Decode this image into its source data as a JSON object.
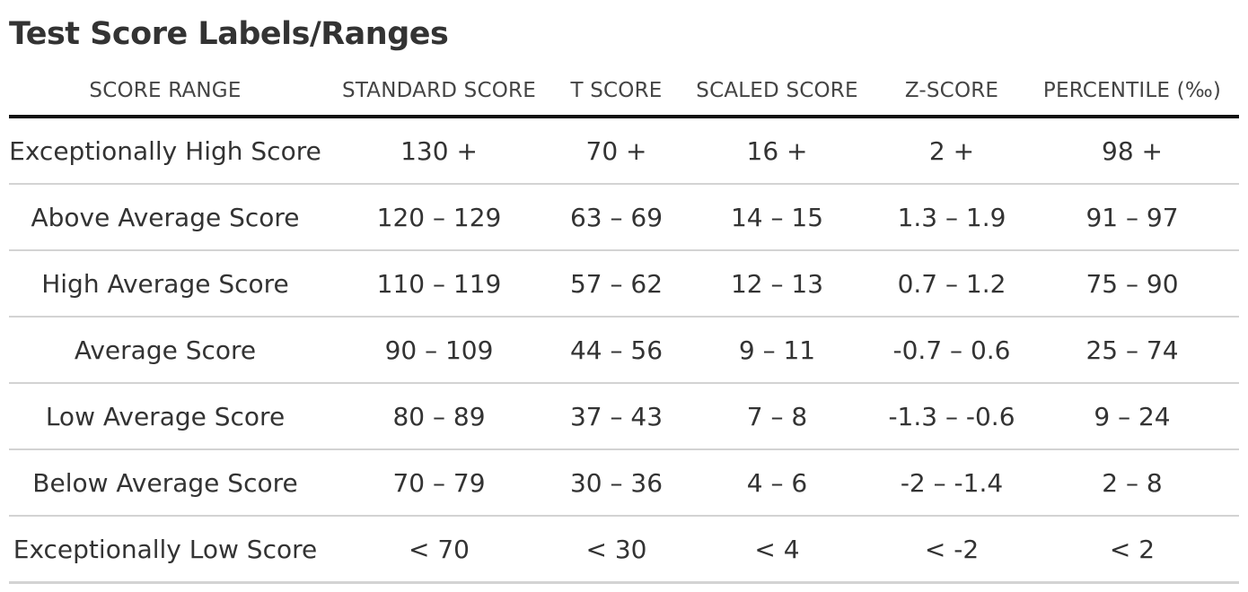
{
  "chart_data": {
    "type": "table",
    "title": "Test Score Labels/Ranges",
    "columns": [
      "SCORE RANGE",
      "STANDARD SCORE",
      "T SCORE",
      "SCALED SCORE",
      "Z-SCORE",
      "PERCENTILE (‰)"
    ],
    "rows": [
      [
        "Exceptionally High Score",
        "130 +",
        "70 +",
        "16 +",
        "2 +",
        "98 +"
      ],
      [
        "Above Average Score",
        "120 – 129",
        "63 – 69",
        "14 – 15",
        "1.3 – 1.9",
        "91 – 97"
      ],
      [
        "High Average Score",
        "110 – 119",
        "57 – 62",
        "12 – 13",
        "0.7 – 1.2",
        "75 – 90"
      ],
      [
        "Average Score",
        "90 – 109",
        "44 – 56",
        "9 – 11",
        "-0.7 – 0.6",
        "25 – 74"
      ],
      [
        "Low Average Score",
        "80 – 89",
        "37 – 43",
        "7 – 8",
        "-1.3 – -0.6",
        "9 – 24"
      ],
      [
        "Below Average Score",
        "70 – 79",
        "30 – 36",
        "4 – 6",
        "-2 – -1.4",
        "2 – 8"
      ],
      [
        "Exceptionally Low Score",
        "< 70",
        "< 30",
        "< 4",
        "< -2",
        "< 2"
      ]
    ]
  }
}
